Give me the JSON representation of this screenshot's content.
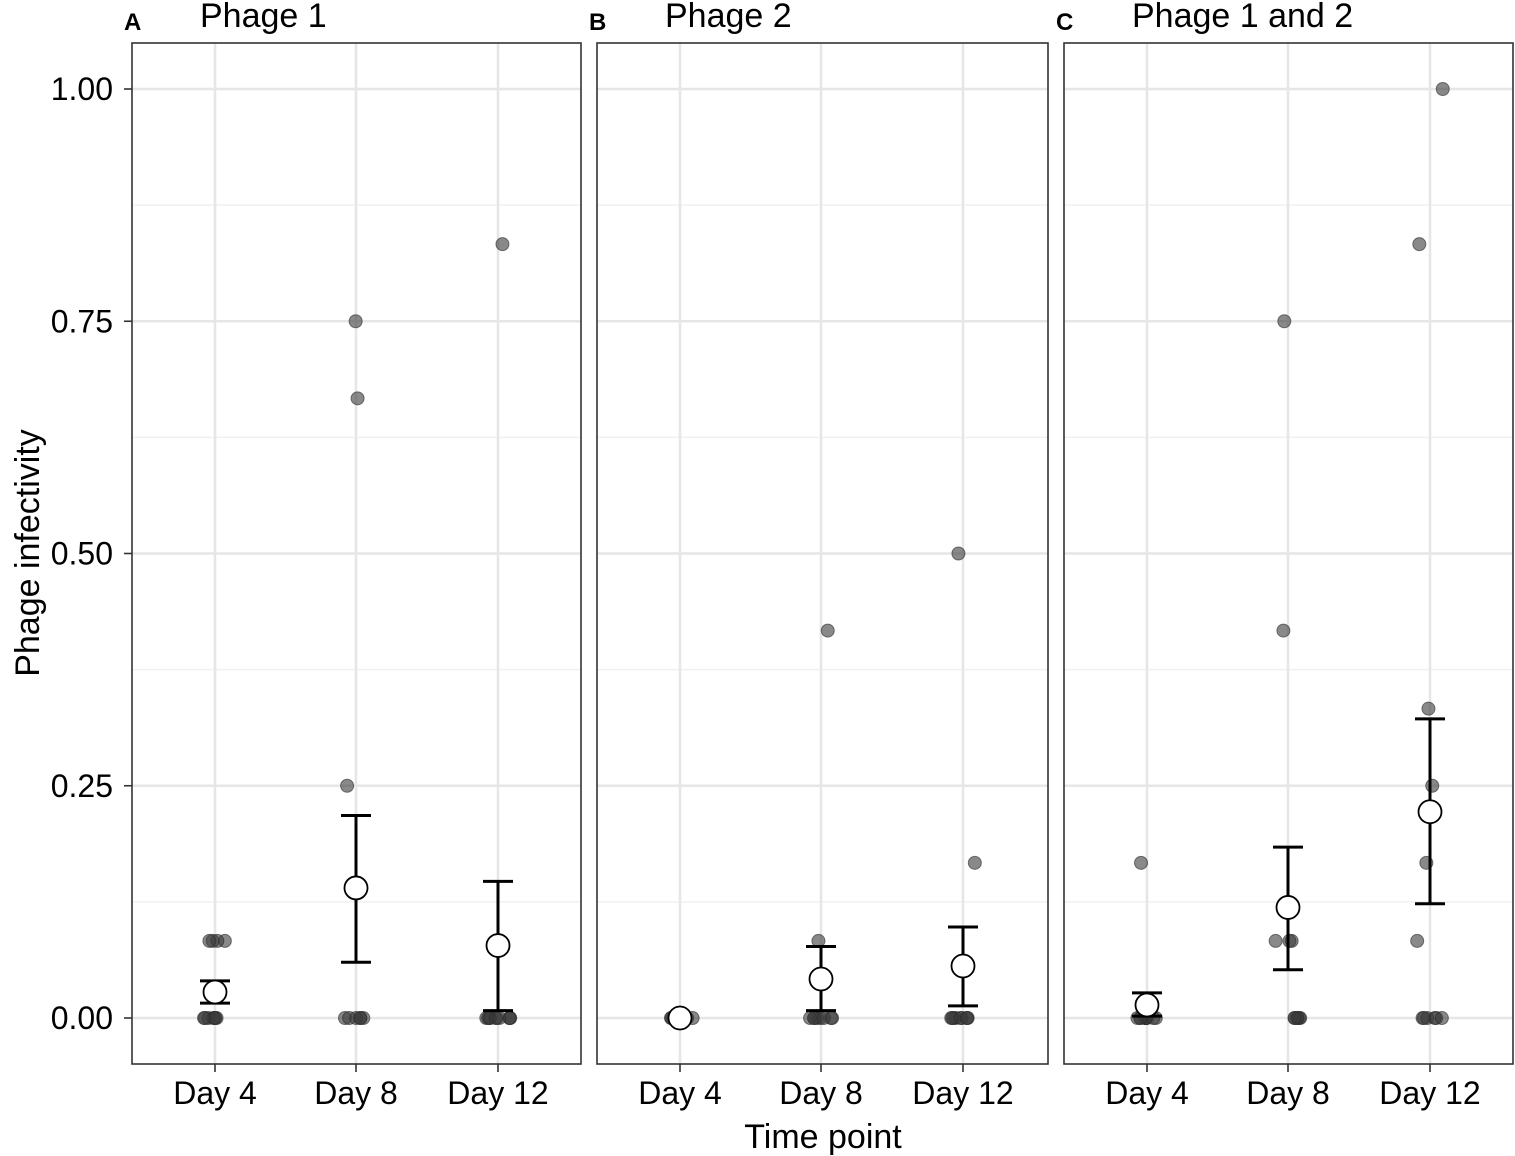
{
  "chart_data": {
    "type": "scatter",
    "ylabel": "Phage infectivity",
    "xlabel": "Time point",
    "categories": [
      "Day 4",
      "Day 8",
      "Day 12"
    ],
    "ylim": [
      -0.05,
      1.05
    ],
    "yticks": [
      0,
      0.25,
      0.5,
      0.75,
      1
    ],
    "ytick_labels": [
      "0.00",
      "0.25",
      "0.50",
      "0.75",
      "1.00"
    ],
    "grid": true,
    "panels": [
      {
        "letter": "A",
        "title": "Phage 1",
        "groups": [
          {
            "category": "Day 4",
            "points": [
              0,
              0,
              0,
              0,
              0,
              0,
              0,
              0.083,
              0.083,
              0.083,
              0.083
            ],
            "mean": 0.028,
            "err_low": 0.016,
            "err_high": 0.04
          },
          {
            "category": "Day 8",
            "points": [
              0,
              0,
              0,
              0,
              0,
              0,
              0.25,
              0.667,
              0.75
            ],
            "mean": 0.14,
            "err_low": 0.06,
            "err_high": 0.218
          },
          {
            "category": "Day 12",
            "points": [
              0,
              0,
              0,
              0,
              0,
              0,
              0,
              0,
              0,
              0,
              0.833
            ],
            "mean": 0.078,
            "err_low": 0.008,
            "err_high": 0.147
          }
        ]
      },
      {
        "letter": "B",
        "title": "Phage 2",
        "groups": [
          {
            "category": "Day 4",
            "points": [
              0,
              0,
              0,
              0,
              0,
              0,
              0,
              0,
              0,
              0
            ],
            "mean": 0.0,
            "err_low": 0.0,
            "err_high": 0.0
          },
          {
            "category": "Day 8",
            "points": [
              0,
              0,
              0,
              0,
              0,
              0,
              0,
              0,
              0.083,
              0.417
            ],
            "mean": 0.042,
            "err_low": 0.008,
            "err_high": 0.077
          },
          {
            "category": "Day 12",
            "points": [
              0,
              0,
              0,
              0,
              0,
              0,
              0,
              0,
              0,
              0.167,
              0.5
            ],
            "mean": 0.056,
            "err_low": 0.013,
            "err_high": 0.098
          }
        ]
      },
      {
        "letter": "C",
        "title": "Phage 1 and 2",
        "groups": [
          {
            "category": "Day 4",
            "points": [
              0,
              0,
              0,
              0,
              0,
              0,
              0,
              0,
              0,
              0,
              0.167
            ],
            "mean": 0.014,
            "err_low": 0.002,
            "err_high": 0.027
          },
          {
            "category": "Day 8",
            "points": [
              0,
              0,
              0,
              0,
              0,
              0,
              0.083,
              0.083,
              0.083,
              0.417,
              0.75
            ],
            "mean": 0.119,
            "err_low": 0.052,
            "err_high": 0.184
          },
          {
            "category": "Day 12",
            "points": [
              0,
              0,
              0,
              0,
              0,
              0,
              0.083,
              0.167,
              0.25,
              0.333,
              0.833,
              1.0
            ],
            "mean": 0.222,
            "err_low": 0.123,
            "err_high": 0.322
          }
        ]
      }
    ]
  }
}
